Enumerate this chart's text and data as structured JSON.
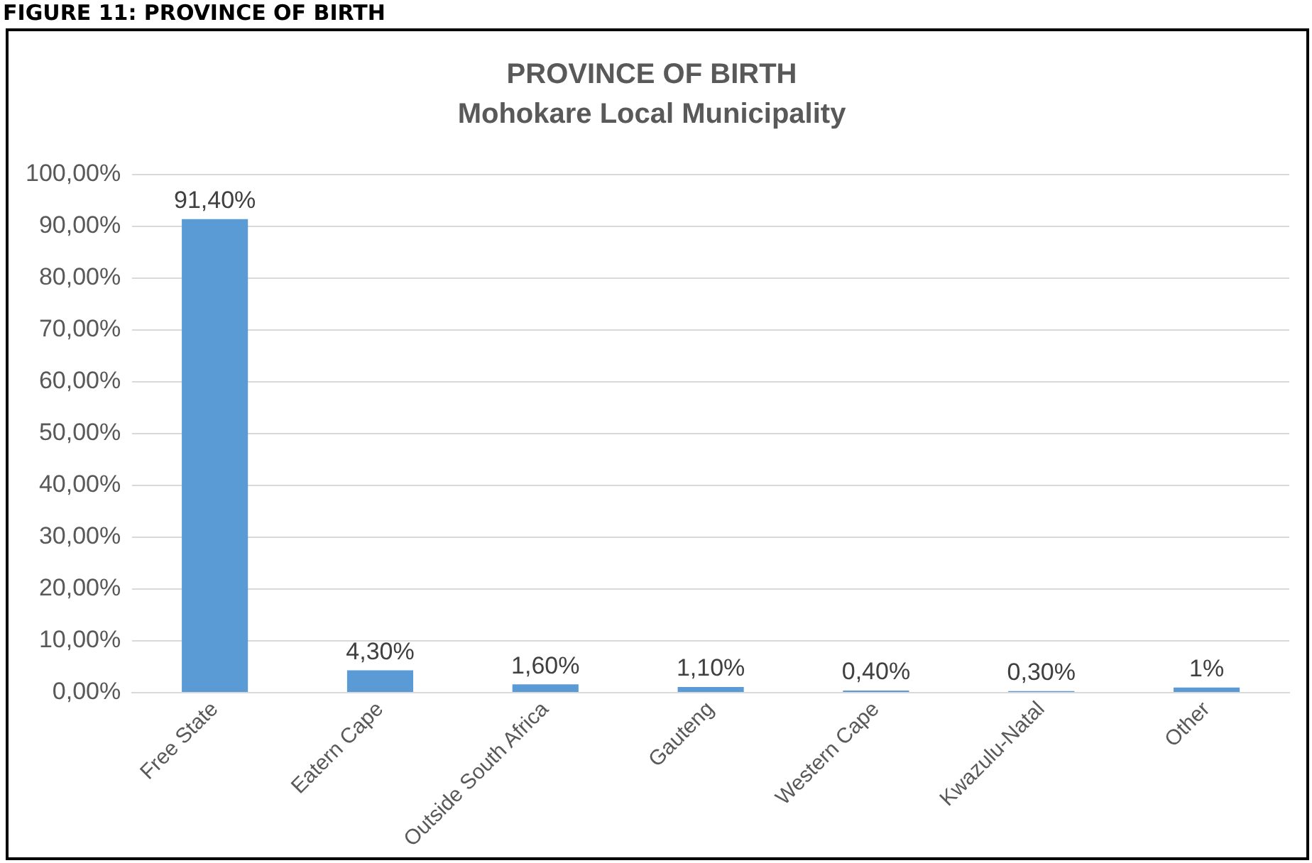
{
  "chart_data": {
    "type": "bar",
    "title": "PROVINCE OF BIRTH",
    "subtitle": "Mohokare Local Municipality",
    "annotations": [
      "FIGURE 11: PROVINCE OF BIRTH"
    ],
    "categories": [
      "Free State",
      "Eatern Cape",
      "Outside South Africa",
      "Gauteng",
      "Western Cape",
      "Kwazulu-Natal",
      "Other"
    ],
    "values": [
      91.4,
      4.3,
      1.6,
      1.1,
      0.4,
      0.3,
      1
    ],
    "value_labels": [
      "91,40%",
      "4,30%",
      "1,60%",
      "1,10%",
      "0,40%",
      "0,30%",
      "1%"
    ],
    "color": "#5b9bd5",
    "ylim": [
      0,
      100
    ],
    "yticks": [
      {
        "value": 0,
        "label": "0,00%"
      },
      {
        "value": 10,
        "label": "10,00%"
      },
      {
        "value": 20,
        "label": "20,00%"
      },
      {
        "value": 30,
        "label": "30,00%"
      },
      {
        "value": 40,
        "label": "40,00%"
      },
      {
        "value": 50,
        "label": "50,00%"
      },
      {
        "value": 60,
        "label": "60,00%"
      },
      {
        "value": 70,
        "label": "70,00%"
      },
      {
        "value": 80,
        "label": "80,00%"
      },
      {
        "value": 90,
        "label": "90,00%"
      },
      {
        "value": 100,
        "label": "100,00%"
      }
    ],
    "grid": "y",
    "legend": false
  }
}
